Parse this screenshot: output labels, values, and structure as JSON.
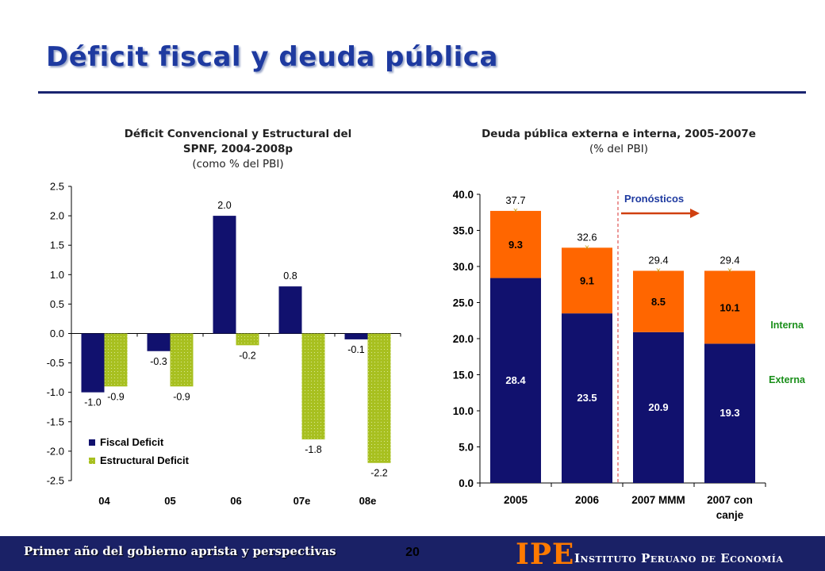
{
  "slide": {
    "title": "Déficit fiscal y deuda pública",
    "footer_text": "Primer año del gobierno aprista y perspectivas",
    "page_number": "20",
    "logo_mark": "IPE",
    "logo_name": "Instituto Peruano de Economía"
  },
  "colors": {
    "navy": "#11116e",
    "olive": "#a8c020",
    "orange": "#ff6600",
    "green_label": "#1a8f1a"
  },
  "chart_data": [
    {
      "type": "bar",
      "title_line1": "Déficit Convencional y Estructural del",
      "title_line2": "SPNF, 2004-2008p",
      "subtitle": "(como % del PBI)",
      "categories": [
        "04",
        "05",
        "06",
        "07e",
        "08e"
      ],
      "series": [
        {
          "name": "Fiscal Deficit",
          "values": [
            -1.0,
            -0.3,
            2.0,
            0.8,
            -0.1
          ],
          "labels": [
            "-1.0",
            "-0.3",
            "2.0",
            "0.8",
            "-0.1"
          ]
        },
        {
          "name": "Estructural Deficit",
          "values": [
            -0.9,
            -0.9,
            -0.2,
            -1.8,
            -2.2
          ],
          "labels": [
            "-0.9",
            "-0.9",
            "-0.2",
            "-1.8",
            "-2.2"
          ]
        }
      ],
      "ylim": [
        -2.5,
        2.5
      ],
      "yticks": [
        "2.5",
        "2.0",
        "1.5",
        "1.0",
        "0.5",
        "0.0",
        "-0.5",
        "-1.0",
        "-1.5",
        "-2.0",
        "-2.5"
      ],
      "legend": "bottom-left",
      "grid": false
    },
    {
      "type": "bar",
      "stacked": true,
      "title_line1": "Deuda pública externa e interna, 2005-2007e",
      "subtitle": "(% del PBI)",
      "categories": [
        [
          "2005"
        ],
        [
          "2006"
        ],
        [
          "2007 MMM"
        ],
        [
          "2007 con",
          "canje"
        ]
      ],
      "series": [
        {
          "name": "Externa",
          "values": [
            28.4,
            23.5,
            20.9,
            19.3
          ],
          "labels": [
            "28.4",
            "23.5",
            "20.9",
            "19.3"
          ]
        },
        {
          "name": "Interna",
          "values": [
            9.3,
            9.1,
            8.5,
            10.1
          ],
          "labels": [
            "9.3",
            "9.1",
            "8.5",
            "10.1"
          ]
        }
      ],
      "totals": [
        "37.7",
        "32.6",
        "29.4",
        "29.4"
      ],
      "ylim": [
        0,
        40
      ],
      "yticks": [
        "40.0",
        "35.0",
        "30.0",
        "25.0",
        "20.0",
        "15.0",
        "10.0",
        "5.0",
        "0.0"
      ],
      "annotation": "Pronósticos",
      "legend": "right",
      "grid": false
    }
  ]
}
